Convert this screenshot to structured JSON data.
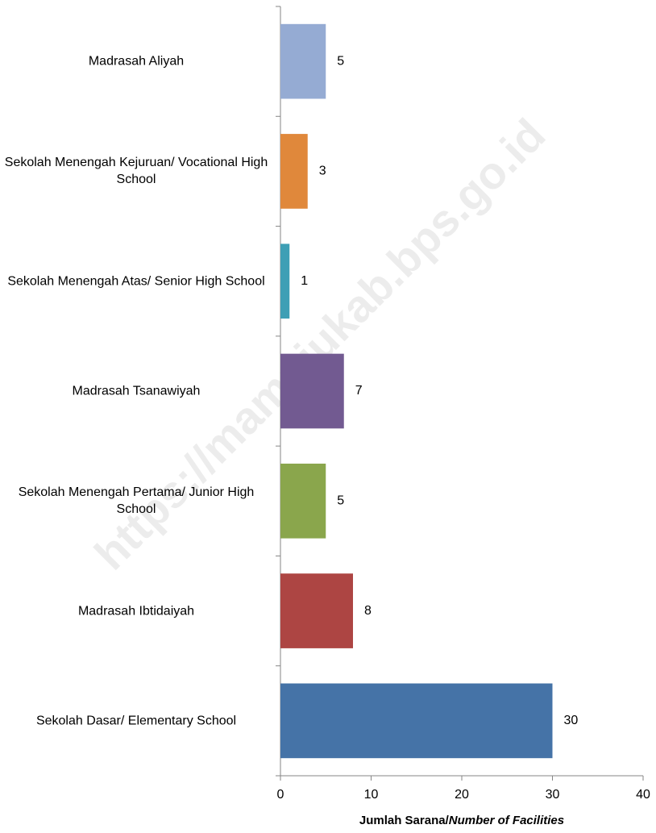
{
  "chart_data": {
    "type": "barh",
    "categories": [
      "Madrasah Aliyah",
      "Sekolah Menengah Kejuruan/ Vocational High School",
      "Sekolah Menengah Atas/ Senior High School",
      "Madrasah Tsanawiyah",
      "Sekolah Menengah Pertama/ Junior High School",
      "Madrasah Ibtidaiyah",
      "Sekolah Dasar/ Elementary School"
    ],
    "values": [
      5,
      3,
      1,
      7,
      5,
      8,
      30
    ],
    "colors": [
      "#95abd3",
      "#e0883b",
      "#3e9fb5",
      "#725a91",
      "#8aa64c",
      "#ad4543",
      "#4573a7"
    ],
    "xlim": [
      0,
      40
    ],
    "xticks": [
      0,
      10,
      20,
      30,
      40
    ],
    "grid": false,
    "xlabel": [
      "Jumlah Sarana/",
      "Number of Facilities"
    ],
    "watermark": "https://mamujukab.bps.go.id"
  }
}
